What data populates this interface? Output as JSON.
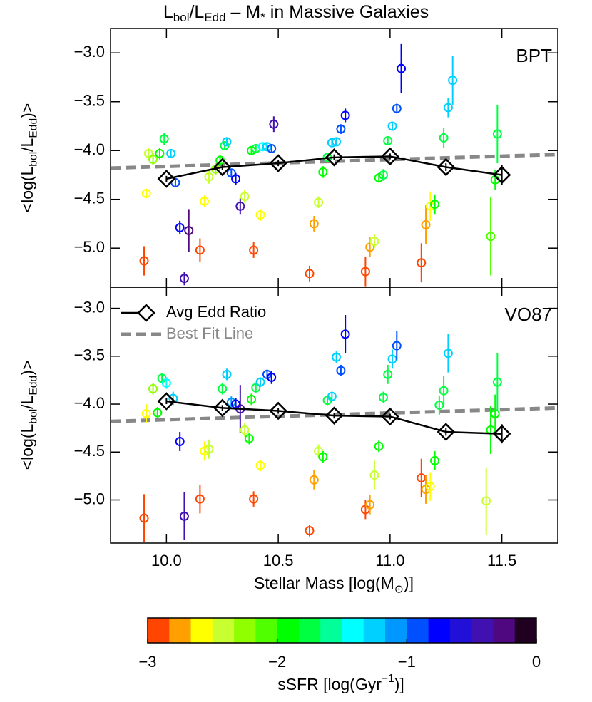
{
  "chart_data": {
    "type": "scatter",
    "title": [
      {
        "text": "L"
      },
      {
        "text": "bol",
        "shift": "sub"
      },
      {
        "text": "/L"
      },
      {
        "text": "Edd",
        "shift": "sub"
      },
      {
        "text": " – M"
      },
      {
        "text": "*",
        "shift": "sub"
      },
      {
        "text": " in Massive Galaxies"
      }
    ],
    "xlabel": [
      {
        "text": "Stellar Mass [log(M"
      },
      {
        "text": "⊙",
        "shift": "sub"
      },
      {
        "text": ")]"
      }
    ],
    "ylabel": [
      {
        "text": "<log(L"
      },
      {
        "text": "bol",
        "shift": "sub"
      },
      {
        "text": "/L"
      },
      {
        "text": "Edd",
        "shift": "sub"
      },
      {
        "text": ")>"
      }
    ],
    "xlim": [
      9.75,
      11.75
    ],
    "xticks": [
      {
        "value": 10,
        "label": "10.0"
      },
      {
        "value": 10.5,
        "label": "10.5"
      },
      {
        "value": 11,
        "label": "11.0"
      },
      {
        "value": 11.5,
        "label": "11.5"
      }
    ],
    "legend": {
      "avg": "Avg Edd Ratio",
      "fit": "Best Fit Line",
      "panel": 1,
      "corner": "upper left"
    },
    "panels": [
      {
        "label": "BPT",
        "ylim": [
          -5.4,
          -2.75
        ],
        "yticks": [
          {
            "value": -5,
            "label": "−5.0"
          },
          {
            "value": -4.5,
            "label": "−4.5"
          },
          {
            "value": -4,
            "label": "−4.0"
          },
          {
            "value": -3.5,
            "label": "−3.5"
          },
          {
            "value": -3,
            "label": "−3.0"
          }
        ],
        "x": [
          9.9,
          9.91,
          9.92,
          9.94,
          9.97,
          9.99,
          10.02,
          10.04,
          10.06,
          10.08,
          10.1,
          10.15,
          10.17,
          10.19,
          10.22,
          10.24,
          10.26,
          10.27,
          10.29,
          10.31,
          10.33,
          10.35,
          10.39,
          10.42,
          10.38,
          10.4,
          10.43,
          10.45,
          10.47,
          10.48,
          10.64,
          10.66,
          10.68,
          10.7,
          10.72,
          10.74,
          10.76,
          10.78,
          10.8,
          10.89,
          10.91,
          10.93,
          10.95,
          10.97,
          10.99,
          11.01,
          11.03,
          11.05,
          11.14,
          11.16,
          11.18,
          11.2,
          11.24,
          11.26,
          11.28,
          11.45,
          11.47,
          11.48
        ],
        "y": [
          -5.13,
          -4.44,
          -4.03,
          -4.09,
          -4.03,
          -3.88,
          -4.03,
          -4.33,
          -4.79,
          -5.31,
          -4.82,
          -5.02,
          -4.52,
          -4.27,
          -4.19,
          -4.1,
          -3.95,
          -3.91,
          -4.23,
          -4.29,
          -4.57,
          -4.47,
          -5.02,
          -4.66,
          -4.0,
          -3.98,
          -3.96,
          -3.96,
          -3.98,
          -3.73,
          -5.26,
          -4.75,
          -4.53,
          -4.22,
          -4.07,
          -3.92,
          -3.91,
          -3.78,
          -3.64,
          -5.24,
          -4.99,
          -4.93,
          -4.28,
          -4.25,
          -3.9,
          -3.75,
          -3.57,
          -3.16,
          -5.15,
          -4.76,
          -4.57,
          -4.55,
          -3.87,
          -3.56,
          -3.28,
          -4.88,
          -4.3,
          -3.83
        ],
        "yerr": [
          0.15,
          0.05,
          0.06,
          0.06,
          0.06,
          0.06,
          0.04,
          0.04,
          0.07,
          0.07,
          0.22,
          0.12,
          0.06,
          0.07,
          0.06,
          0.05,
          0.04,
          0.04,
          0.04,
          0.06,
          0.08,
          0.07,
          0.08,
          0.06,
          0.04,
          0.04,
          0.04,
          0.04,
          0.04,
          0.08,
          0.08,
          0.08,
          0.06,
          0.06,
          0.04,
          0.04,
          0.04,
          0.05,
          0.07,
          0.15,
          0.1,
          0.07,
          0.05,
          0.06,
          0.04,
          0.04,
          0.05,
          0.25,
          0.2,
          0.2,
          0.15,
          0.1,
          0.1,
          0.1,
          0.25,
          0.4,
          0.1,
          0.3
        ],
        "ssfr": [
          -2.95,
          -2.6,
          -2.5,
          -2.3,
          -1.9,
          -1.7,
          -1.2,
          -1.0,
          -0.7,
          -0.5,
          -0.3,
          -2.95,
          -2.6,
          -2.5,
          -2.3,
          -1.9,
          -1.7,
          -1.2,
          -1.0,
          -0.7,
          -0.5,
          -2.5,
          -2.95,
          -2.6,
          -1.9,
          -1.7,
          -1.4,
          -1.2,
          -0.9,
          -0.4,
          -2.95,
          -2.7,
          -2.5,
          -1.9,
          -1.7,
          -1.3,
          -1.2,
          -0.9,
          -0.7,
          -2.95,
          -2.7,
          -2.5,
          -1.9,
          -1.7,
          -1.7,
          -1.2,
          -1.0,
          -0.7,
          -2.95,
          -2.75,
          -2.55,
          -1.9,
          -1.7,
          -1.3,
          -1.2,
          -2.1,
          -1.9,
          -1.8
        ],
        "avg": {
          "x": [
            10,
            10.25,
            10.5,
            10.75,
            11,
            11.25,
            11.5
          ],
          "y": [
            -4.29,
            -4.17,
            -4.13,
            -4.07,
            -4.06,
            -4.17,
            -4.25
          ],
          "yerr": [
            0.03,
            0.03,
            0.03,
            0.03,
            0.03,
            0.04,
            0.1
          ]
        },
        "fit": {
          "x": [
            9.75,
            11.75
          ],
          "y": [
            -4.18,
            -4.04
          ]
        }
      },
      {
        "label": "VO87",
        "ylim": [
          -5.45,
          -2.78
        ],
        "yticks": [
          {
            "value": -5,
            "label": "−5.0"
          },
          {
            "value": -4.5,
            "label": "−4.5"
          },
          {
            "value": -4,
            "label": "−4.0"
          },
          {
            "value": -3.5,
            "label": "−3.5"
          },
          {
            "value": -3,
            "label": "−3.0"
          }
        ],
        "x": [
          9.9,
          9.91,
          9.94,
          9.96,
          9.98,
          10.0,
          10.03,
          10.06,
          10.08,
          10.15,
          10.17,
          10.19,
          10.25,
          10.27,
          10.29,
          10.31,
          10.33,
          10.35,
          10.37,
          10.39,
          10.42,
          10.38,
          10.4,
          10.42,
          10.45,
          10.47,
          10.64,
          10.66,
          10.68,
          10.7,
          10.72,
          10.74,
          10.76,
          10.78,
          10.8,
          10.89,
          10.91,
          10.93,
          10.95,
          10.97,
          10.99,
          11.01,
          11.03,
          11.14,
          11.16,
          11.18,
          11.2,
          11.22,
          11.24,
          11.26,
          11.43,
          11.45,
          11.47,
          11.48
        ],
        "y": [
          -5.19,
          -4.1,
          -3.84,
          -4.09,
          -3.73,
          -3.78,
          -3.94,
          -4.39,
          -5.17,
          -4.99,
          -4.49,
          -4.47,
          -3.84,
          -3.69,
          -3.98,
          -4.0,
          -4.05,
          -4.27,
          -4.36,
          -4.99,
          -4.64,
          -3.95,
          -3.83,
          -3.77,
          -3.69,
          -3.72,
          -5.32,
          -4.79,
          -4.49,
          -4.55,
          -3.96,
          -3.92,
          -3.51,
          -3.65,
          -3.27,
          -5.1,
          -5.05,
          -4.74,
          -4.44,
          -3.93,
          -3.69,
          -3.53,
          -3.39,
          -4.77,
          -4.89,
          -4.86,
          -4.59,
          -4.01,
          -3.86,
          -3.47,
          -5.01,
          -4.27,
          -4.1,
          -3.77
        ],
        "yerr": [
          0.25,
          0.1,
          0.06,
          0.06,
          0.05,
          0.06,
          0.07,
          0.1,
          0.25,
          0.15,
          0.1,
          0.1,
          0.06,
          0.06,
          0.06,
          0.06,
          0.25,
          0.07,
          0.06,
          0.08,
          0.06,
          0.06,
          0.05,
          0.05,
          0.05,
          0.07,
          0.06,
          0.1,
          0.07,
          0.06,
          0.05,
          0.05,
          0.06,
          0.06,
          0.2,
          0.1,
          0.1,
          0.15,
          0.06,
          0.06,
          0.1,
          0.1,
          0.15,
          0.2,
          0.15,
          0.15,
          0.1,
          0.1,
          0.15,
          0.2,
          0.35,
          0.25,
          0.2,
          0.3
        ],
        "ssfr": [
          -2.95,
          -2.6,
          -2.3,
          -1.9,
          -1.7,
          -1.4,
          -1.2,
          -0.7,
          -0.5,
          -2.95,
          -2.6,
          -2.4,
          -1.8,
          -1.2,
          -1.1,
          -0.7,
          -0.4,
          -2.5,
          -1.9,
          -2.95,
          -2.6,
          -1.9,
          -1.7,
          -1.2,
          -0.9,
          -0.7,
          -2.95,
          -2.7,
          -2.5,
          -1.9,
          -1.7,
          -1.3,
          -1.2,
          -0.9,
          -0.7,
          -2.95,
          -2.7,
          -2.5,
          -1.9,
          -1.7,
          -1.7,
          -1.2,
          -1.0,
          -2.95,
          -2.75,
          -2.55,
          -1.9,
          -1.7,
          -1.7,
          -1.2,
          -2.4,
          -1.9,
          -1.9,
          -1.8
        ],
        "avg": {
          "x": [
            10,
            10.25,
            10.5,
            10.75,
            11,
            11.25,
            11.5
          ],
          "y": [
            -3.97,
            -4.04,
            -4.07,
            -4.12,
            -4.13,
            -4.29,
            -4.31
          ],
          "yerr": [
            0.03,
            0.03,
            0.03,
            0.03,
            0.03,
            0.04,
            0.1
          ]
        },
        "fit": {
          "x": [
            9.75,
            11.75
          ],
          "y": [
            -4.18,
            -4.04
          ]
        }
      }
    ],
    "colorbar": {
      "label": [
        {
          "text": "sSFR [log(Gyr"
        },
        {
          "text": "−1",
          "shift": "sup"
        },
        {
          "text": ")]"
        }
      ],
      "clim": [
        -3,
        0
      ],
      "ticks": [
        {
          "value": -3,
          "label": "−3"
        },
        {
          "value": -2,
          "label": "−2"
        },
        {
          "value": -1,
          "label": "−1"
        },
        0
      ],
      "colors": [
        "#ff4500",
        "#ffa000",
        "#ffff00",
        "#c8ff30",
        "#90ff00",
        "#50ff00",
        "#00ff00",
        "#00ff40",
        "#00ff98",
        "#00ffff",
        "#00d0ff",
        "#0098ff",
        "#0050ff",
        "#0000ff",
        "#2010d8",
        "#4010b0",
        "#500880",
        "#200020"
      ]
    }
  }
}
